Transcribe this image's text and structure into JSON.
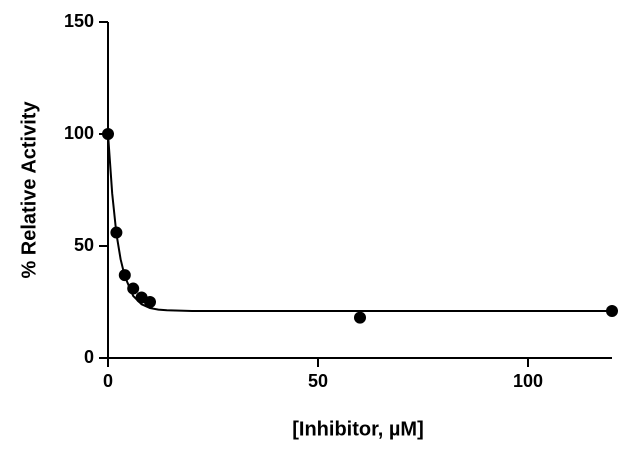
{
  "chart_data": {
    "type": "scatter",
    "x_label": "[Inhibitor, µM]",
    "y_label": "% Relative  Activity",
    "color": "#000000",
    "points": {
      "x": [
        0,
        2,
        4,
        6,
        8,
        10,
        60,
        120
      ],
      "values": [
        100,
        56,
        37,
        31,
        27,
        25,
        18,
        21
      ]
    },
    "curve": {
      "x": [
        0,
        1,
        2,
        3,
        4,
        6,
        8,
        10,
        12,
        14,
        20,
        40,
        60,
        80,
        100,
        120
      ],
      "values": [
        100,
        73.4,
        55.5,
        44.1,
        36.4,
        27.7,
        24,
        22.3,
        21.6,
        21.3,
        21,
        21,
        21,
        21,
        21,
        21
      ]
    },
    "xlim": [
      0,
      120
    ],
    "xticks": [
      0,
      50,
      100
    ],
    "ylim": [
      0,
      150
    ],
    "yticks": [
      0,
      50,
      100,
      150
    ]
  }
}
